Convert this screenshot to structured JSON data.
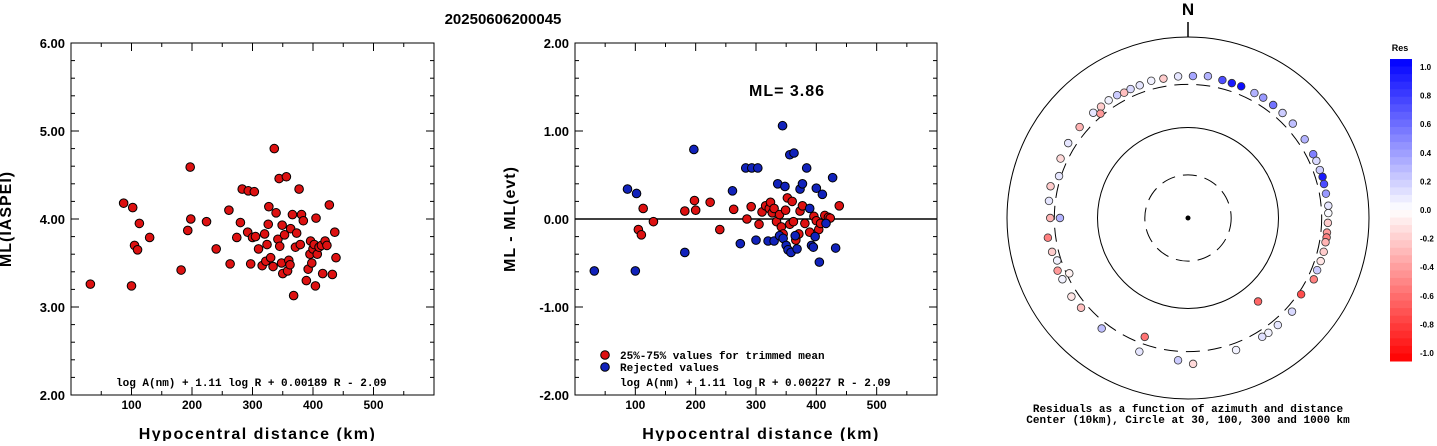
{
  "title": "20250606200045",
  "colors": {
    "accepted": "#dd1111",
    "rejected": "#1122bb",
    "axis": "#000000",
    "res_pos": "#0000ff",
    "res_neg": "#ff0000"
  },
  "chart_data": [
    {
      "type": "scatter",
      "title": "",
      "xlabel": "Hypocentral distance (km)",
      "ylabel": "ML(IASPEI)",
      "xlim": [
        0,
        600
      ],
      "ylim": [
        2.0,
        6.0
      ],
      "x_ticks": [
        "100",
        "200",
        "300",
        "400",
        "500"
      ],
      "y_ticks": [
        "2.00",
        "3.00",
        "4.00",
        "5.00",
        "6.00"
      ],
      "formula": "log A(nm) + 1.11 log R + 0.00189 R - 2.09",
      "series": [
        {
          "points": [
            [
              32,
              3.26
            ],
            [
              87,
              4.18
            ],
            [
              100,
              3.24
            ],
            [
              102,
              4.13
            ],
            [
              105,
              3.7
            ],
            [
              110,
              3.65
            ],
            [
              113,
              3.95
            ],
            [
              130,
              3.79
            ],
            [
              182,
              3.42
            ],
            [
              193,
              3.87
            ],
            [
              197,
              4.59
            ],
            [
              198,
              4.0
            ],
            [
              224,
              3.97
            ],
            [
              240,
              3.66
            ],
            [
              261,
              4.1
            ],
            [
              263,
              3.49
            ],
            [
              274,
              3.79
            ],
            [
              280,
              3.96
            ],
            [
              283,
              4.34
            ],
            [
              292,
              3.85
            ],
            [
              293,
              4.32
            ],
            [
              297,
              3.49
            ],
            [
              300,
              3.79
            ],
            [
              303,
              4.31
            ],
            [
              305,
              3.8
            ],
            [
              310,
              3.66
            ],
            [
              316,
              3.47
            ],
            [
              320,
              3.83
            ],
            [
              322,
              3.52
            ],
            [
              324,
              3.71
            ],
            [
              326,
              3.94
            ],
            [
              327,
              4.14
            ],
            [
              330,
              3.56
            ],
            [
              334,
              3.46
            ],
            [
              336,
              4.8
            ],
            [
              339,
              4.07
            ],
            [
              342,
              3.77
            ],
            [
              344,
              4.46
            ],
            [
              345,
              3.69
            ],
            [
              348,
              3.5
            ],
            [
              349,
              3.93
            ],
            [
              350,
              3.38
            ],
            [
              353,
              3.82
            ],
            [
              356,
              4.48
            ],
            [
              358,
              3.41
            ],
            [
              360,
              3.53
            ],
            [
              362,
              3.48
            ],
            [
              363,
              3.89
            ],
            [
              366,
              4.05
            ],
            [
              368,
              3.13
            ],
            [
              371,
              3.68
            ],
            [
              373,
              3.84
            ],
            [
              377,
              4.34
            ],
            [
              379,
              3.71
            ],
            [
              381,
              4.05
            ],
            [
              384,
              3.98
            ],
            [
              389,
              3.3
            ],
            [
              392,
              3.43
            ],
            [
              395,
              3.6
            ],
            [
              396,
              3.75
            ],
            [
              398,
              3.5
            ],
            [
              400,
              3.66
            ],
            [
              402,
              3.71
            ],
            [
              404,
              3.24
            ],
            [
              405,
              4.01
            ],
            [
              407,
              3.6
            ],
            [
              410,
              3.68
            ],
            [
              414,
              3.7
            ],
            [
              416,
              3.38
            ],
            [
              420,
              3.75
            ],
            [
              423,
              3.7
            ],
            [
              427,
              4.16
            ],
            [
              432,
              3.37
            ],
            [
              436,
              3.85
            ],
            [
              438,
              3.56
            ]
          ]
        }
      ]
    },
    {
      "type": "scatter",
      "title": "",
      "annotation": "ML= 3.86",
      "xlabel": "Hypocentral distance (km)",
      "ylabel": "ML - ML(evt)",
      "xlim": [
        0,
        600
      ],
      "ylim": [
        -2.0,
        2.0
      ],
      "x_ticks": [
        "100",
        "200",
        "300",
        "400",
        "500"
      ],
      "y_ticks": [
        "-2.00",
        "-1.00",
        "0.00",
        "1.00",
        "2.00"
      ],
      "formula": "log A(nm) + 1.11 log R + 0.00227 R - 2.09",
      "legend": [
        "25%-75% values for trimmed mean",
        "Rejected values"
      ],
      "legend_position": "bottom-left",
      "series": [
        {
          "name": "25%-75% values for trimmed mean",
          "points": [
            [
              105,
              -0.12
            ],
            [
              110,
              -0.18
            ],
            [
              113,
              0.12
            ],
            [
              130,
              -0.03
            ],
            [
              182,
              0.09
            ],
            [
              198,
              0.21
            ],
            [
              200,
              0.1
            ],
            [
              224,
              0.19
            ],
            [
              240,
              -0.12
            ],
            [
              263,
              0.11
            ],
            [
              285,
              0.0
            ],
            [
              292,
              0.14
            ],
            [
              305,
              -0.06
            ],
            [
              310,
              0.08
            ],
            [
              316,
              0.15
            ],
            [
              322,
              0.12
            ],
            [
              324,
              0.19
            ],
            [
              327,
              0.07
            ],
            [
              330,
              0.12
            ],
            [
              334,
              -0.03
            ],
            [
              339,
              0.05
            ],
            [
              342,
              -0.09
            ],
            [
              345,
              -0.17
            ],
            [
              349,
              0.1
            ],
            [
              352,
              0.24
            ],
            [
              356,
              -0.06
            ],
            [
              360,
              0.2
            ],
            [
              362,
              -0.03
            ],
            [
              366,
              -0.24
            ],
            [
              371,
              -0.17
            ],
            [
              373,
              0.09
            ],
            [
              377,
              0.15
            ],
            [
              381,
              -0.05
            ],
            [
              389,
              -0.15
            ],
            [
              396,
              0.03
            ],
            [
              400,
              -0.02
            ],
            [
              404,
              -0.12
            ],
            [
              407,
              -0.05
            ],
            [
              414,
              0.04
            ],
            [
              420,
              0.02
            ],
            [
              423,
              0.01
            ],
            [
              438,
              0.15
            ]
          ]
        },
        {
          "name": "Rejected values",
          "points": [
            [
              32,
              -0.59
            ],
            [
              87,
              0.34
            ],
            [
              100,
              -0.59
            ],
            [
              102,
              0.29
            ],
            [
              182,
              -0.38
            ],
            [
              197,
              0.79
            ],
            [
              261,
              0.32
            ],
            [
              274,
              -0.28
            ],
            [
              283,
              0.58
            ],
            [
              293,
              0.58
            ],
            [
              300,
              -0.24
            ],
            [
              303,
              0.58
            ],
            [
              320,
              -0.25
            ],
            [
              330,
              -0.25
            ],
            [
              336,
              0.4
            ],
            [
              339,
              -0.19
            ],
            [
              344,
              1.06
            ],
            [
              345,
              -0.22
            ],
            [
              348,
              0.37
            ],
            [
              350,
              -0.3
            ],
            [
              353,
              -0.35
            ],
            [
              356,
              0.73
            ],
            [
              358,
              -0.38
            ],
            [
              363,
              0.75
            ],
            [
              365,
              -0.19
            ],
            [
              368,
              -0.34
            ],
            [
              373,
              0.34
            ],
            [
              377,
              0.4
            ],
            [
              384,
              0.58
            ],
            [
              389,
              0.12
            ],
            [
              392,
              -0.3
            ],
            [
              395,
              -0.32
            ],
            [
              398,
              -0.2
            ],
            [
              400,
              0.35
            ],
            [
              405,
              -0.49
            ],
            [
              410,
              0.28
            ],
            [
              416,
              -0.05
            ],
            [
              427,
              0.47
            ],
            [
              432,
              -0.33
            ]
          ]
        }
      ]
    },
    {
      "type": "scatter",
      "title": "N",
      "caption_line1": "Residuals as a function of azimuth and distance",
      "caption_line2": "Center (10km), Circle at 30, 100, 300 and 1000 km",
      "rings_km": [
        30,
        100,
        300,
        1000
      ],
      "colorbar": {
        "title": "Res",
        "ticks": [
          "1.0",
          "0.8",
          "0.6",
          "0.4",
          "0.2",
          "0.0",
          "-0.2",
          "-0.4",
          "-0.6",
          "-0.8",
          "-1.0"
        ],
        "range": [
          -1.0,
          1.0
        ]
      },
      "points": [
        [
          2,
          371,
          0.35
        ],
        [
          8,
          382,
          0.3
        ],
        [
          14,
          372,
          0.7
        ],
        [
          18,
          369,
          0.9
        ],
        [
          22,
          371,
          0.95
        ],
        [
          28,
          366,
          0.3
        ],
        [
          32,
          370,
          0.4
        ],
        [
          37,
          366,
          0.55
        ],
        [
          42,
          364,
          0.2
        ],
        [
          48,
          362,
          0.25
        ],
        [
          56,
          359,
          0.3
        ],
        [
          63,
          357,
          0.5
        ],
        [
          66,
          357,
          0.15
        ],
        [
          70,
          355,
          0.2
        ],
        [
          73,
          359,
          0.9
        ],
        [
          76,
          354,
          0.7
        ],
        [
          80,
          353,
          0.4
        ],
        [
          85,
          360,
          0.1
        ],
        [
          88,
          356,
          0.02
        ],
        [
          92,
          352,
          -0.2
        ],
        [
          96,
          350,
          -0.4
        ],
        [
          98,
          352,
          -0.5
        ],
        [
          100,
          349,
          -0.3
        ],
        [
          104,
          351,
          -0.2
        ],
        [
          108,
          348,
          -0.1
        ],
        [
          112,
          346,
          0.2
        ],
        [
          116,
          352,
          -0.5
        ],
        [
          124,
          322,
          -0.7
        ],
        [
          132,
          352,
          0.15
        ],
        [
          140,
          350,
          0.1
        ],
        [
          145,
          354,
          0.05
        ],
        [
          148,
          353,
          0.12
        ],
        [
          160,
          357,
          0.05
        ],
        [
          178,
          410,
          -0.15
        ],
        [
          184,
          377,
          0.2
        ],
        [
          200,
          373,
          0.1
        ],
        [
          218,
          354,
          0.25
        ],
        [
          230,
          349,
          -0.25
        ],
        [
          236,
          358,
          -0.1
        ],
        [
          244,
          350,
          0.05
        ],
        [
          248,
          358,
          -0.4
        ],
        [
          252,
          331,
          0.05
        ],
        [
          256,
          353,
          -0.2
        ],
        [
          262,
          366,
          -0.5
        ],
        [
          270,
          333,
          -0.3
        ],
        [
          277,
          353,
          0.1
        ],
        [
          283,
          362,
          -0.2
        ],
        [
          288,
          315,
          0.1
        ],
        [
          295,
          358,
          -0.15
        ],
        [
          302,
          364,
          0.1
        ],
        [
          310,
          366,
          -0.3
        ],
        [
          318,
          367,
          0.1
        ],
        [
          322,
          364,
          -0.2
        ],
        [
          326,
          370,
          0.05
        ],
        [
          330,
          369,
          0.2
        ],
        [
          333,
          358,
          -0.25
        ],
        [
          336,
          363,
          0.15
        ],
        [
          340,
          363,
          0.1
        ],
        [
          345,
          371,
          0.05
        ],
        [
          350,
          366,
          -0.2
        ],
        [
          356,
          370,
          0.1
        ],
        [
          140,
          160,
          -0.6
        ],
        [
          200,
          250,
          -0.55
        ],
        [
          270,
          260,
          0.3
        ],
        [
          320,
          320,
          -0.4
        ],
        [
          245,
          280,
          -0.05
        ]
      ]
    }
  ]
}
